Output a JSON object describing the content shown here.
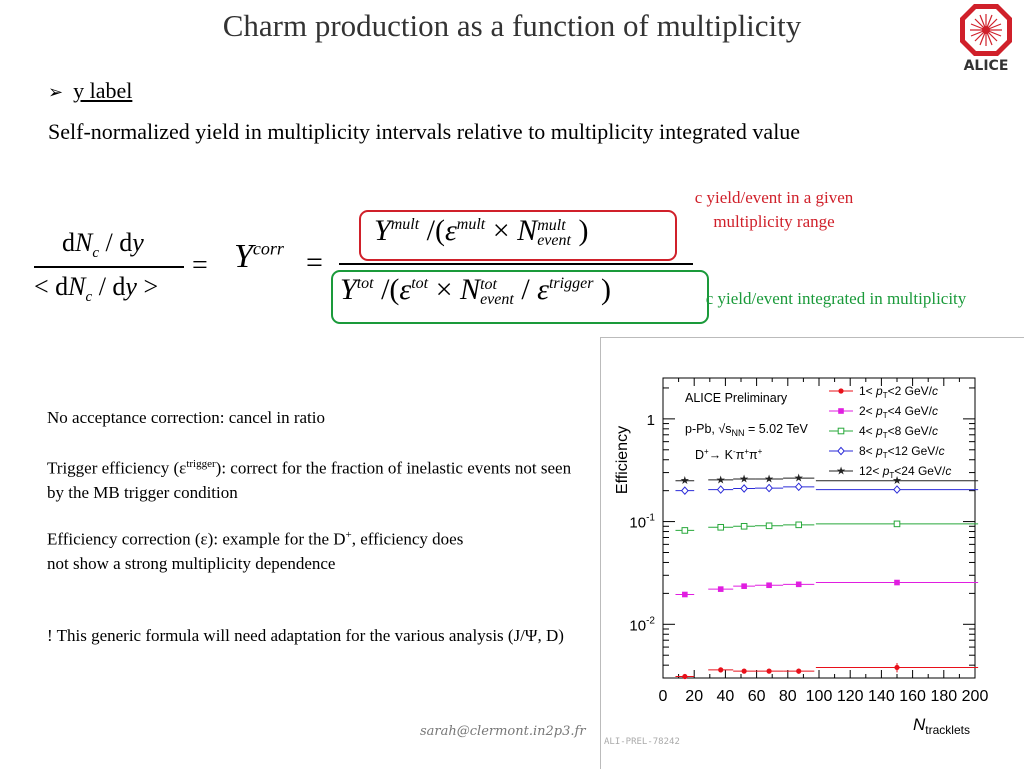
{
  "slide": {
    "title": "Charm production as a function of multiplicity",
    "logo_text": "ALICE",
    "bullet_arrow": "➢",
    "bullet_label": "y label",
    "intro": "Self-normalized yield in multiplicity intervals relative to multiplicity integrated value"
  },
  "formula": {
    "lhs_num_d": "d",
    "lhs_num_N": "N",
    "lhs_num_sub": "c",
    "lhs_num_slash": " / d",
    "lhs_num_y": "y",
    "lhs_den_lt": "<",
    "lhs_den_d": " d",
    "lhs_den_N": "N",
    "lhs_den_sub": "c",
    "lhs_den_slash": " / d",
    "lhs_den_y": "y",
    "lhs_den_gt": " >",
    "eq": "=",
    "Y": "Y",
    "corr": "corr",
    "eq2": "=",
    "num_Y": "Y",
    "num_mult": "mult",
    "num_open": " /(",
    "num_eps": "ε",
    "num_eps_sup": "mult",
    "num_times": " × ",
    "num_N": "N",
    "num_N_sup": "mult",
    "num_N_sub": "event",
    "num_close": " )",
    "den_Y": "Y",
    "den_tot": "tot",
    "den_open": " /(",
    "den_eps": "ε",
    "den_eps_sup": "tot",
    "den_times": " × ",
    "den_N": "N",
    "den_N_sup": "tot",
    "den_N_sub": "event",
    "den_slash": "  / ",
    "den_eps2": "ε",
    "den_eps2_sup": "trigger",
    "den_close": " )"
  },
  "annotations": {
    "red": "c yield/event in a given multiplicity range",
    "green": "c yield/event integrated in multiplicity"
  },
  "notes": {
    "n1": "No acceptance correction: cancel in ratio",
    "n2_a": "Trigger efficiency (ε",
    "n2_sup": "trigger",
    "n2_b": "): correct for the fraction of inelastic events not seen by the MB trigger condition",
    "n3_a": "Efficiency correction (ε): example for the D",
    "n3_sup": "+",
    "n3_b": ", efficiency does not show a strong multiplicity dependence",
    "n4": "! This generic formula will need adaptation for the various analysis (J/Ψ, D)"
  },
  "footer": {
    "email": "sarah@clermont.in2p3.fr",
    "prel_id": "ALI-PREL-78242"
  },
  "colors": {
    "red_box": "#d0202a",
    "green_box": "#1a9a3a",
    "title": "#333333"
  },
  "chart_data": {
    "type": "scatter",
    "title": "",
    "xlabel": "N",
    "xlabel_sub": "tracklets",
    "ylabel": "Efficiency",
    "xlim": [
      0,
      200
    ],
    "ylim": [
      0.003,
      2.5
    ],
    "yscale": "log",
    "x_ticks": [
      "0",
      "20",
      "40",
      "60",
      "80",
      "100",
      "120",
      "140",
      "160",
      "180",
      "200"
    ],
    "y_ticks": [
      {
        "value": 0.01,
        "base": "10",
        "exp": "-2"
      },
      {
        "value": 0.1,
        "base": "10",
        "exp": "-1"
      },
      {
        "value": 1,
        "base": "1",
        "exp": ""
      }
    ],
    "text_lines": [
      "ALICE Preliminary",
      "p-Pb, √s",
      "NN",
      " = 5.02 TeV",
      "D",
      "+",
      "→ K",
      "-",
      "π",
      "+",
      "π",
      "+"
    ],
    "legend_position": "top-right",
    "series": [
      {
        "name": "1< p_T<2 GeV/c",
        "label_a": "1< ",
        "label_p": "p",
        "label_T": "T",
        "label_b": "<2 GeV/",
        "label_c": "c",
        "color": "#e8101a",
        "marker": "filled-circle",
        "x": [
          14,
          37,
          52,
          68,
          87,
          150
        ],
        "xerr": [
          6,
          8,
          7,
          9,
          10,
          52
        ],
        "y": [
          0.0031,
          0.0036,
          0.0035,
          0.0035,
          0.0035,
          0.0038
        ],
        "yerr": [
          0.0001,
          0.0002,
          0.0001,
          0.0001,
          0.0002,
          0.0004
        ]
      },
      {
        "name": "2< p_T<4 GeV/c",
        "label_a": "2< ",
        "label_p": "p",
        "label_T": "T",
        "label_b": "<4 GeV/",
        "label_c": "c",
        "color": "#e01ee0",
        "marker": "filled-square",
        "x": [
          14,
          37,
          52,
          68,
          87,
          150
        ],
        "xerr": [
          6,
          8,
          7,
          9,
          10,
          52
        ],
        "y": [
          0.0195,
          0.022,
          0.0235,
          0.024,
          0.0245,
          0.0255
        ],
        "yerr": [
          0.0004,
          0.0003,
          0.0003,
          0.0003,
          0.0004,
          0.0006
        ]
      },
      {
        "name": "4< p_T<8 GeV/c",
        "label_a": "4< ",
        "label_p": "p",
        "label_T": "T",
        "label_b": "<8 GeV/",
        "label_c": "c",
        "color": "#27a83a",
        "marker": "open-square",
        "x": [
          14,
          37,
          52,
          68,
          87,
          150
        ],
        "xerr": [
          6,
          8,
          7,
          9,
          10,
          52
        ],
        "y": [
          0.082,
          0.088,
          0.09,
          0.091,
          0.093,
          0.095
        ],
        "yerr": [
          0.001,
          0.001,
          0.001,
          0.001,
          0.001,
          0.002
        ]
      },
      {
        "name": "8< p_T<12 GeV/c",
        "label_a": "8< ",
        "label_p": "p",
        "label_T": "T",
        "label_b": "<12 GeV/",
        "label_c": "c",
        "color": "#2b2bd8",
        "marker": "open-diamond",
        "x": [
          14,
          37,
          52,
          68,
          87,
          150
        ],
        "xerr": [
          6,
          8,
          7,
          9,
          10,
          52
        ],
        "y": [
          0.2,
          0.205,
          0.21,
          0.212,
          0.218,
          0.205
        ],
        "yerr": [
          0.004,
          0.004,
          0.004,
          0.004,
          0.005,
          0.006
        ]
      },
      {
        "name": "12< p_T<24 GeV/c",
        "label_a": "12< ",
        "label_p": "p",
        "label_T": "T",
        "label_b": "<24 GeV/",
        "label_c": "c",
        "color": "#222222",
        "marker": "star",
        "x": [
          14,
          37,
          52,
          68,
          87,
          150
        ],
        "xerr": [
          6,
          8,
          7,
          9,
          10,
          52
        ],
        "y": [
          0.25,
          0.255,
          0.26,
          0.26,
          0.265,
          0.25
        ],
        "yerr": [
          0.005,
          0.005,
          0.005,
          0.005,
          0.006,
          0.008
        ]
      }
    ]
  }
}
